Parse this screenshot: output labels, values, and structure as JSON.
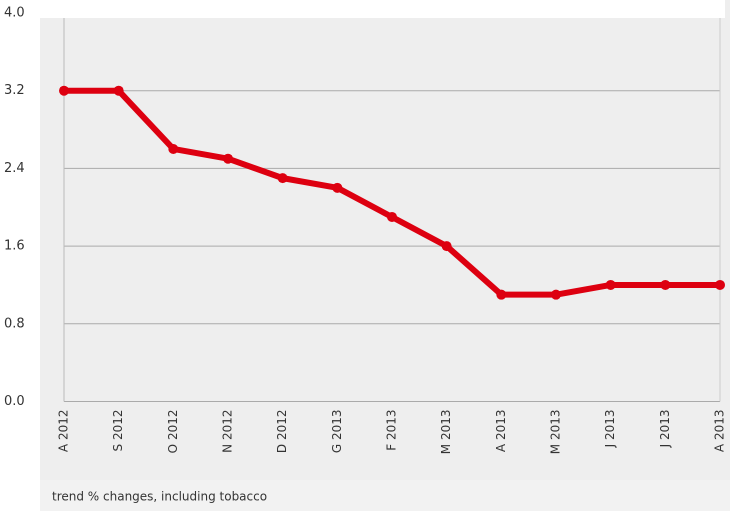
{
  "chart_data": {
    "type": "line",
    "categories": [
      "A 2012",
      "S 2012",
      "O 2012",
      "N 2012",
      "D 2012",
      "G 2013",
      "F 2013",
      "M 2013",
      "A 2013",
      "M 2013",
      "J 2013",
      "J 2013",
      "A 2013"
    ],
    "values": [
      3.2,
      3.2,
      2.6,
      2.5,
      2.3,
      2.2,
      1.9,
      1.6,
      1.1,
      1.1,
      1.2,
      1.2,
      1.2
    ],
    "color": "#dd0010",
    "ylim": [
      0,
      4
    ],
    "yticks": [
      {
        "value": 0,
        "label": "0.0"
      },
      {
        "value": 0.8,
        "label": "0.8"
      },
      {
        "value": 1.6,
        "label": "1.6"
      },
      {
        "value": 2.4,
        "label": "2.4"
      },
      {
        "value": 3.2,
        "label": "3.2"
      },
      {
        "value": 4,
        "label": "4.0"
      }
    ],
    "grid": true,
    "note": "trend % changes, including tobacco"
  }
}
